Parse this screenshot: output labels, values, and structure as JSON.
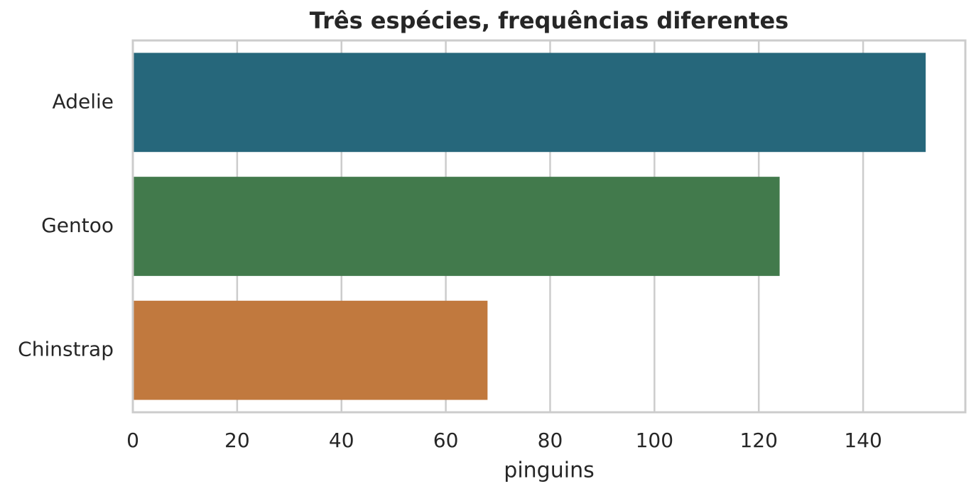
{
  "chart_data": {
    "type": "bar",
    "orientation": "horizontal",
    "title": "Três espécies, frequências diferentes",
    "xlabel": "pinguins",
    "categories": [
      "Adelie",
      "Gentoo",
      "Chinstrap"
    ],
    "values": [
      152,
      124,
      68
    ],
    "colors": [
      "#26677b",
      "#427a4c",
      "#c1793e"
    ],
    "xlim": [
      0,
      159.6
    ],
    "xticks": [
      0,
      20,
      40,
      60,
      80,
      100,
      120,
      140
    ],
    "grid": true
  }
}
